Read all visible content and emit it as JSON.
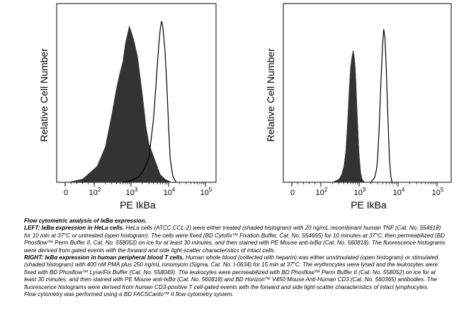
{
  "chart_data": [
    {
      "type": "area",
      "title": "",
      "xlabel": "PE IkBa",
      "ylabel": "Relative Cell Number",
      "x_scale": "biexponential",
      "x_ticks": [
        "0",
        "10^2",
        "10^3",
        "10^4",
        "10^5"
      ],
      "grid": false,
      "series": [
        {
          "style": "shaded",
          "x": [
            10,
            60,
            120,
            200,
            300,
            400,
            500,
            600,
            700,
            800,
            900,
            1000,
            1200,
            1500,
            2000,
            2500,
            3000,
            4000,
            5000,
            6000,
            8000,
            12000
          ],
          "y": [
            0,
            0.02,
            0.1,
            0.22,
            0.42,
            0.58,
            0.68,
            0.75,
            0.86,
            0.92,
            0.97,
            0.94,
            0.88,
            0.78,
            0.55,
            0.35,
            0.24,
            0.16,
            0.1,
            0.05,
            0.02,
            0
          ]
        },
        {
          "style": "open",
          "x": [
            600,
            1000,
            1500,
            2000,
            3000,
            4000,
            5000,
            5500,
            6000,
            6500,
            7000,
            8000,
            9000,
            10000,
            11000,
            13000,
            16000
          ],
          "y": [
            0,
            0.01,
            0.03,
            0.06,
            0.15,
            0.4,
            0.72,
            0.85,
            0.95,
            1.0,
            0.97,
            0.82,
            0.6,
            0.35,
            0.15,
            0.04,
            0
          ]
        }
      ]
    },
    {
      "type": "area",
      "title": "",
      "xlabel": "PE IkBa",
      "ylabel": "Relative Cell Number",
      "x_scale": "biexponential",
      "x_ticks": [
        "0",
        "10^2",
        "10^3",
        "10^4",
        "10^5"
      ],
      "grid": false,
      "series": [
        {
          "style": "shaded",
          "x": [
            200,
            300,
            350,
            400,
            450,
            500,
            550,
            600,
            650,
            700,
            750,
            800,
            850,
            900,
            1000,
            1100,
            1200,
            1400
          ],
          "y": [
            0,
            0.02,
            0.05,
            0.1,
            0.2,
            0.38,
            0.58,
            0.72,
            0.78,
            0.82,
            0.78,
            0.7,
            0.56,
            0.42,
            0.18,
            0.06,
            0.02,
            0
          ]
        },
        {
          "style": "open",
          "x": [
            2000,
            2500,
            2800,
            3000,
            3300,
            3600,
            4000,
            4300,
            4600,
            5000,
            5500,
            6000,
            6500,
            7000
          ],
          "y": [
            0,
            0.03,
            0.08,
            0.15,
            0.35,
            0.6,
            0.85,
            0.95,
            0.9,
            0.7,
            0.4,
            0.15,
            0.04,
            0
          ]
        }
      ]
    }
  ],
  "caption": {
    "heading": "Flow cytometric analysis of IκBα expression.",
    "left_label": "LEFT: IκBα expression in HeLa cells.",
    "left_text": "HeLa cells (ATCC CCL-2) were either treated (shaded histogram) with 20 ng/mL recombinant human TNF (Cat. No. 554618) for 10 min at 37°C or untreated (open histogram). The cells were fixed (BD Cytofix™ Fixation Buffer, Cat. No. 554655) for 10 minutes at 37°C, then permeabilized (BD Phosflow™ Perm Buffer II, Cat. No. 558052) on ice for at least 30 minutes, and then stained with PE Mouse anti-IκBα (Cat. No. 560818). The fluorescence histograms were derived from gated events with the forward and side light-scatter characteristics of intact cells.",
    "right_label": "RIGHT: IκBα expression in human peripheral blood T cells.",
    "right_text": "Human whole blood (collected with heparin) was either unstimulated (open histogram) or stimulated (shaded histogram) with 400 nM PMA plus 250 ng/mL ionomycin (Sigma, Cat. No. I-0634) for 15 min at 37°C. The erythrocytes were lysed and the leukocytes were fixed with BD Phosflow™ Lyse/Fix Buffer (Cat. No. 558049). The leukocytes were permeabilized with BD Phosflow™ Perm Buffer II (Cat. No. 558052) on ice for at least 30 minutes, and then stained with PE Mouse anti-IκBα (Cat. No. 560818) and BD Horizon™ V450 Mouse Anti-Human CD3 (Cat. No. 560365) antibodies. The fluorescence histograms were derived from human CD3-positive T cell-gated events with the forward and side light-scatter characteristics of intact lymphocytes.",
    "footer": "Flow cytometry was performed using a BD FACSCanto™ II flow cytometry system."
  },
  "colors": {
    "shaded": "#333333",
    "open_line": "#000000"
  }
}
